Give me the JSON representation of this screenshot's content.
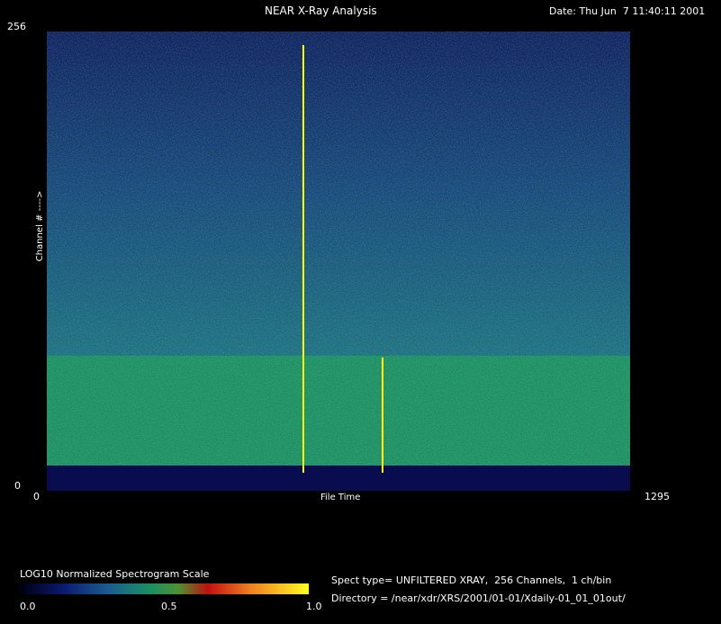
{
  "header": {
    "title": "NEAR X-Ray Analysis",
    "date": "Date: Thu Jun  7 11:40:11 2001"
  },
  "plot": {
    "y_label": "Channel # ---->",
    "y_max": "256",
    "y_min": "0",
    "x_min": "0",
    "x_max": "1295",
    "x_label": "File Time"
  },
  "colorbar": {
    "title": "LOG10 Normalized Spectrogram Scale",
    "ticks": [
      "0.0",
      "0.5",
      "1.0"
    ]
  },
  "info": {
    "spect_type": "Spect type= UNFILTERED XRAY,  256 Channels,  1 ch/bin",
    "directory": "Directory = /near/xdr/XRS/2001/01-01/Xdaily-01_01_01out/"
  }
}
